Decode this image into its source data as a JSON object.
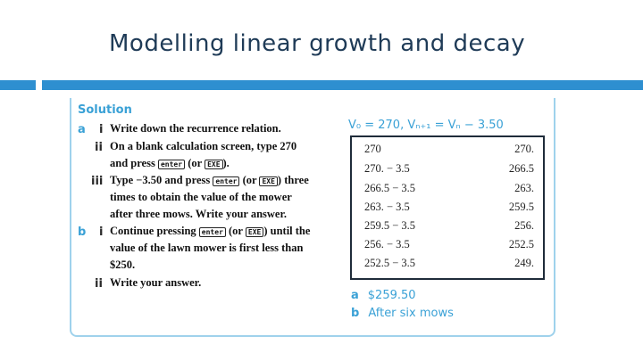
{
  "slide_title": "Modelling linear growth and decay",
  "solution_heading": "Solution",
  "part_a": {
    "label": "a",
    "steps": [
      {
        "num": "i",
        "lines": [
          "Write down the recurrence relation."
        ]
      },
      {
        "num": "ii",
        "lines": [
          "On a blank calculation screen, type 270",
          "and press [enter] (or [EXE])."
        ]
      },
      {
        "num": "iii",
        "lines": [
          "Type −3.50 and press [enter] (or [EXE]) three",
          "times to obtain the value of the mower",
          "after three mows. Write your answer."
        ]
      }
    ]
  },
  "part_b": {
    "label": "b",
    "steps": [
      {
        "num": "i",
        "lines": [
          "Continue pressing [enter] (or [EXE]) until the",
          "value of the lawn mower is first less than",
          "$250."
        ]
      },
      {
        "num": "ii",
        "lines": [
          "Write your answer."
        ]
      }
    ]
  },
  "keys": {
    "enter": "enter",
    "exe": "EXE"
  },
  "recurrence": "V₀ = 270, Vₙ₊₁ = Vₙ − 3.50",
  "calculator_rows": [
    {
      "input": "270",
      "output": "270."
    },
    {
      "input": "270. − 3.5",
      "output": "266.5"
    },
    {
      "input": "266.5 − 3.5",
      "output": "263."
    },
    {
      "input": "263. − 3.5",
      "output": "259.5"
    },
    {
      "input": "259.5 − 3.5",
      "output": "256."
    },
    {
      "input": "256. − 3.5",
      "output": "252.5"
    },
    {
      "input": "252.5 − 3.5",
      "output": "249."
    }
  ],
  "answers": [
    {
      "label": "a",
      "text": "$259.50"
    },
    {
      "label": "b",
      "text": "After six mows"
    }
  ],
  "colors": {
    "accent_bar": "#2e8fd0",
    "heading_blue": "#3aa1d6",
    "title_navy": "#1f3b57"
  }
}
